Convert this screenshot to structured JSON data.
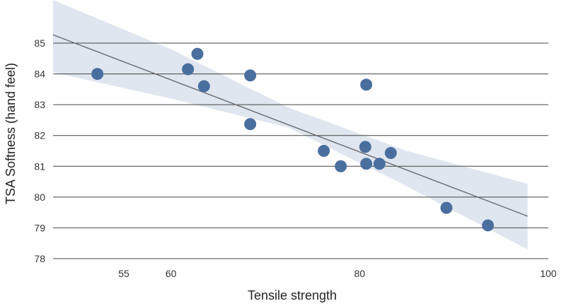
{
  "chart_data": {
    "type": "scatter",
    "title": "",
    "xlabel": "Tensile strength",
    "ylabel": "TSA Softness (hand feel)",
    "xlim": [
      47.5,
      100
    ],
    "ylim": [
      78,
      86.4
    ],
    "x_ticks": [
      55,
      60,
      80,
      100
    ],
    "y_ticks": [
      78,
      79,
      80,
      81,
      82,
      83,
      84,
      85
    ],
    "grid": "horizontal",
    "series": [
      {
        "points": [
          {
            "x": 52.2,
            "y": 84.0
          },
          {
            "x": 61.8,
            "y": 84.15
          },
          {
            "x": 62.8,
            "y": 84.65
          },
          {
            "x": 63.5,
            "y": 83.6
          },
          {
            "x": 68.4,
            "y": 83.95
          },
          {
            "x": 68.4,
            "y": 82.37
          },
          {
            "x": 76.2,
            "y": 81.5
          },
          {
            "x": 78.0,
            "y": 81.0
          },
          {
            "x": 80.6,
            "y": 81.63
          },
          {
            "x": 80.7,
            "y": 83.65
          },
          {
            "x": 80.7,
            "y": 81.08
          },
          {
            "x": 82.1,
            "y": 81.08
          },
          {
            "x": 83.3,
            "y": 81.43
          },
          {
            "x": 89.2,
            "y": 79.65
          },
          {
            "x": 93.6,
            "y": 79.08
          }
        ]
      }
    ],
    "fit_line": {
      "x": [
        47.5,
        97.8
      ],
      "y": [
        85.27,
        79.38
      ]
    },
    "confidence_band": {
      "x": [
        47.5,
        60,
        72.5,
        85,
        97.8
      ],
      "upper": [
        86.4,
        84.8,
        82.9,
        81.5,
        80.43
      ],
      "lower": [
        84.05,
        83.2,
        82.25,
        80.35,
        78.3
      ]
    },
    "colors": {
      "points": "#4a6f9f",
      "fit_line": "#6a6a72",
      "band": "#dfe6ef",
      "grid": "#444444"
    }
  }
}
